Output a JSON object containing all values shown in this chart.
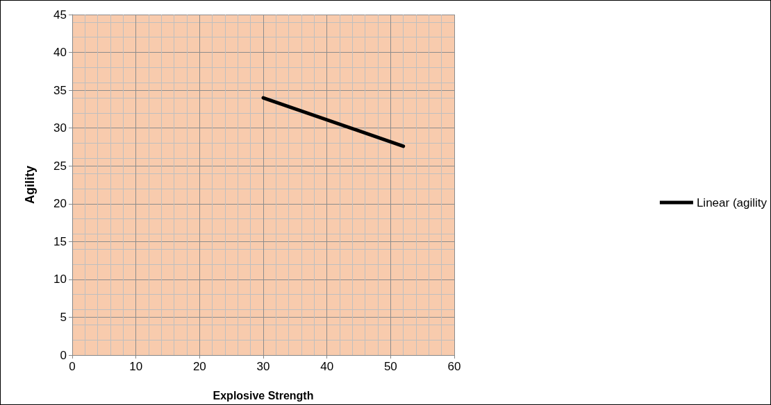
{
  "chart_data": {
    "type": "line",
    "xlabel": "Explosive Strength",
    "ylabel": "Agility",
    "x": [
      30,
      52
    ],
    "series": [
      {
        "name": "Linear (agility",
        "color": "#000000",
        "values": [
          34,
          27.6
        ]
      }
    ],
    "xlim": [
      0,
      60
    ],
    "xticks": [
      0,
      10,
      20,
      30,
      40,
      50,
      60
    ],
    "ylim": [
      0,
      45
    ],
    "yticks": [
      0,
      5,
      10,
      15,
      20,
      25,
      30,
      35,
      40,
      45
    ],
    "grid": true,
    "legend": "right",
    "marker": "none",
    "line_style": "solid"
  }
}
